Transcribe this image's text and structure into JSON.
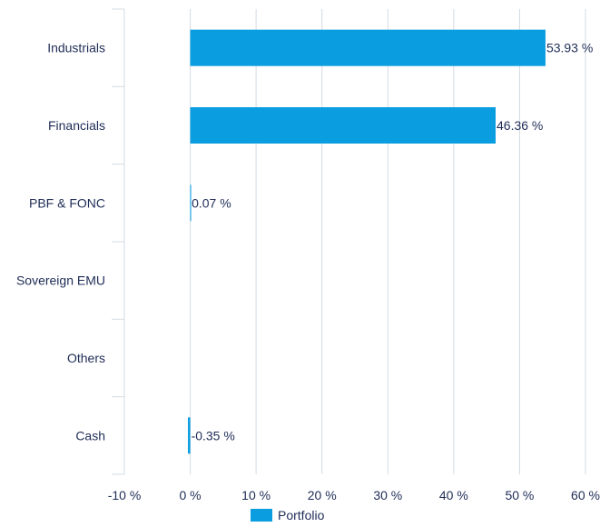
{
  "chart_data": {
    "type": "bar",
    "orientation": "horizontal",
    "categories": [
      "Industrials",
      "Financials",
      "PBF & FONC",
      "Sovereign EMU",
      "Others",
      "Cash"
    ],
    "series": [
      {
        "name": "Portfolio",
        "values": [
          53.93,
          46.36,
          0.07,
          0,
          0,
          -0.35
        ],
        "color": "#0a9ee0"
      }
    ],
    "data_labels": [
      "53.93 %",
      "46.36 %",
      "0.07 %",
      "",
      "",
      "-0.35 %"
    ],
    "xlim": [
      -10,
      60
    ],
    "xticks": [
      -10,
      0,
      10,
      20,
      30,
      40,
      50,
      60
    ],
    "xtick_labels": [
      "-10 %",
      "0 %",
      "10 %",
      "20 %",
      "30 %",
      "40 %",
      "50 %",
      "60 %"
    ],
    "grid": true,
    "legend_position": "bottom",
    "colors": {
      "bar": "#0a9ee0",
      "text": "#1f2d57",
      "grid": "#d2dbe4"
    }
  }
}
